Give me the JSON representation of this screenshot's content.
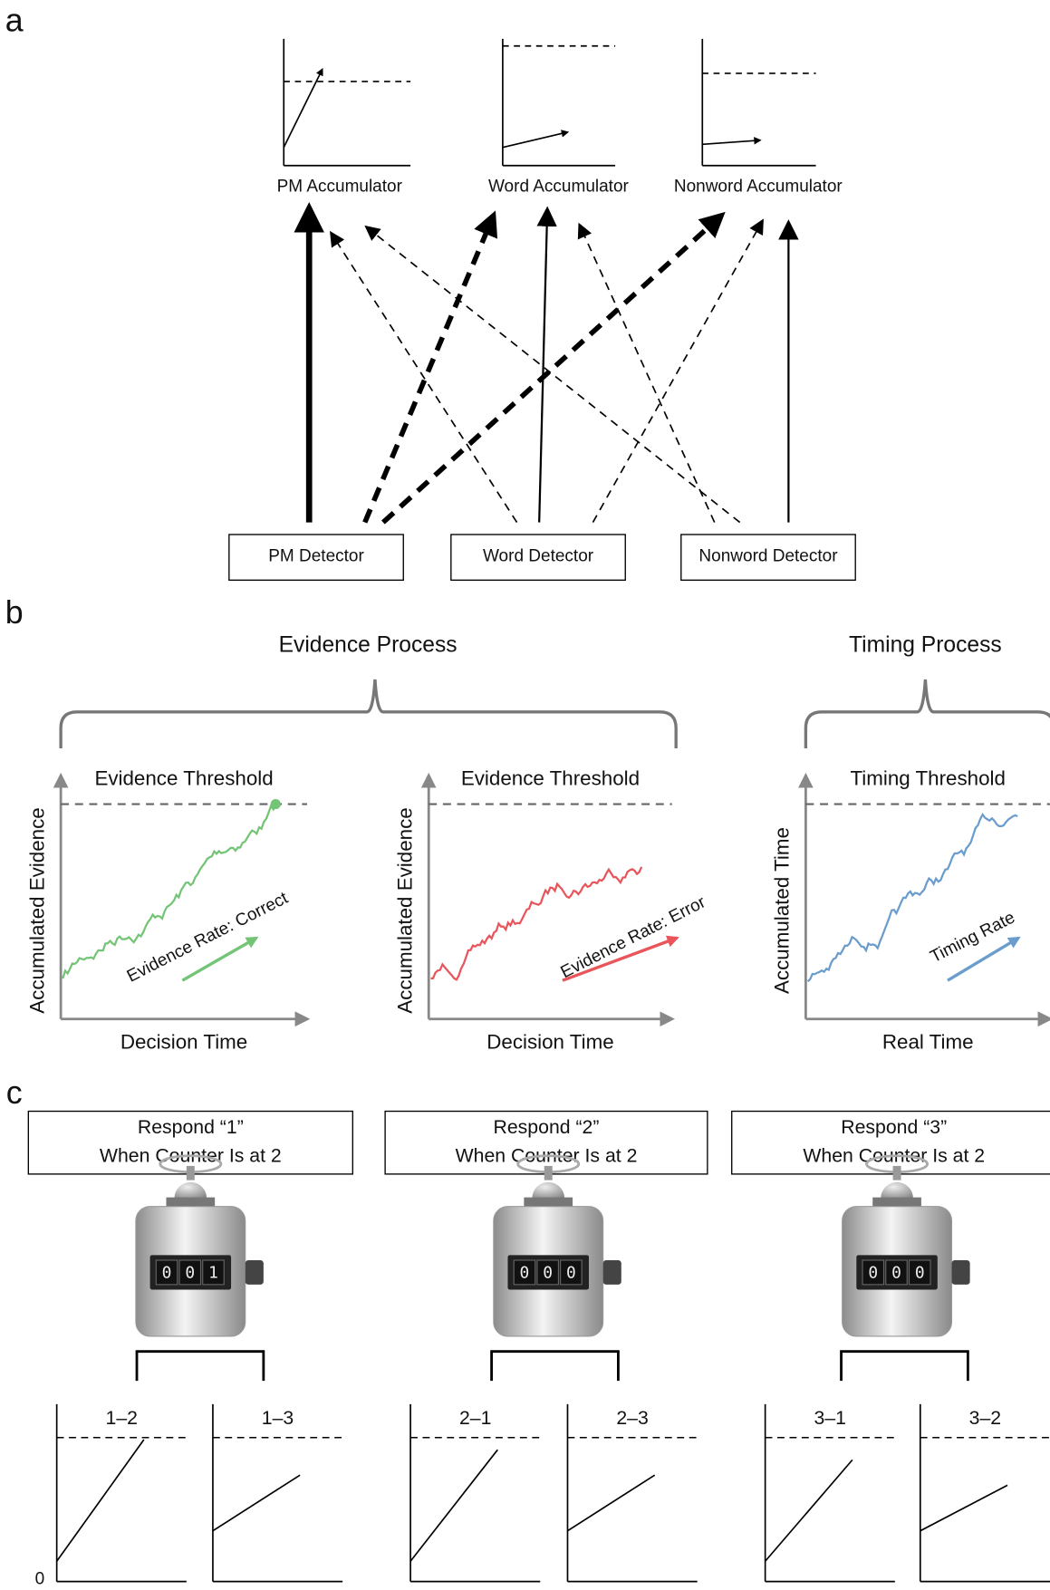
{
  "panel_labels": [
    "a",
    "b",
    "c"
  ],
  "accumulators": [
    "PM Accumulator",
    "Word Accumulator",
    "Nonword Accumulator"
  ],
  "detectors": [
    "PM Detector",
    "Word Detector",
    "Nonword Detector"
  ],
  "processes": [
    "Evidence Process",
    "Timing Process"
  ],
  "plots": [
    {
      "threshold": "Evidence Threshold",
      "y_label": "Accumulated Evidence",
      "x_label": "Decision Time",
      "rate_label": "Evidence Rate: Correct"
    },
    {
      "threshold": "Evidence Threshold",
      "y_label": "Accumulated Evidence",
      "x_label": "Decision Time",
      "rate_label": "Evidence Rate: Error"
    },
    {
      "threshold": "Timing Threshold",
      "y_label": "Accumulated Time",
      "x_label": "Real Time",
      "rate_label": "Timing Rate"
    }
  ],
  "counters": [
    {
      "instruction": [
        "Respond “1”",
        "When Counter Is at 2"
      ],
      "digits": [
        "0",
        "0",
        "1"
      ],
      "comparisons": [
        "1–2",
        "1–3"
      ]
    },
    {
      "instruction": [
        "Respond “2”",
        "When Counter Is at 2"
      ],
      "digits": [
        "0",
        "0",
        "0"
      ],
      "comparisons": [
        "2–1",
        "2–3"
      ]
    },
    {
      "instruction": [
        "Respond “3”",
        "When Counter Is at 2"
      ],
      "digits": [
        "0",
        "0",
        "0"
      ],
      "comparisons": [
        "3–1",
        "3–2"
      ]
    }
  ],
  "zero_label": "0"
}
